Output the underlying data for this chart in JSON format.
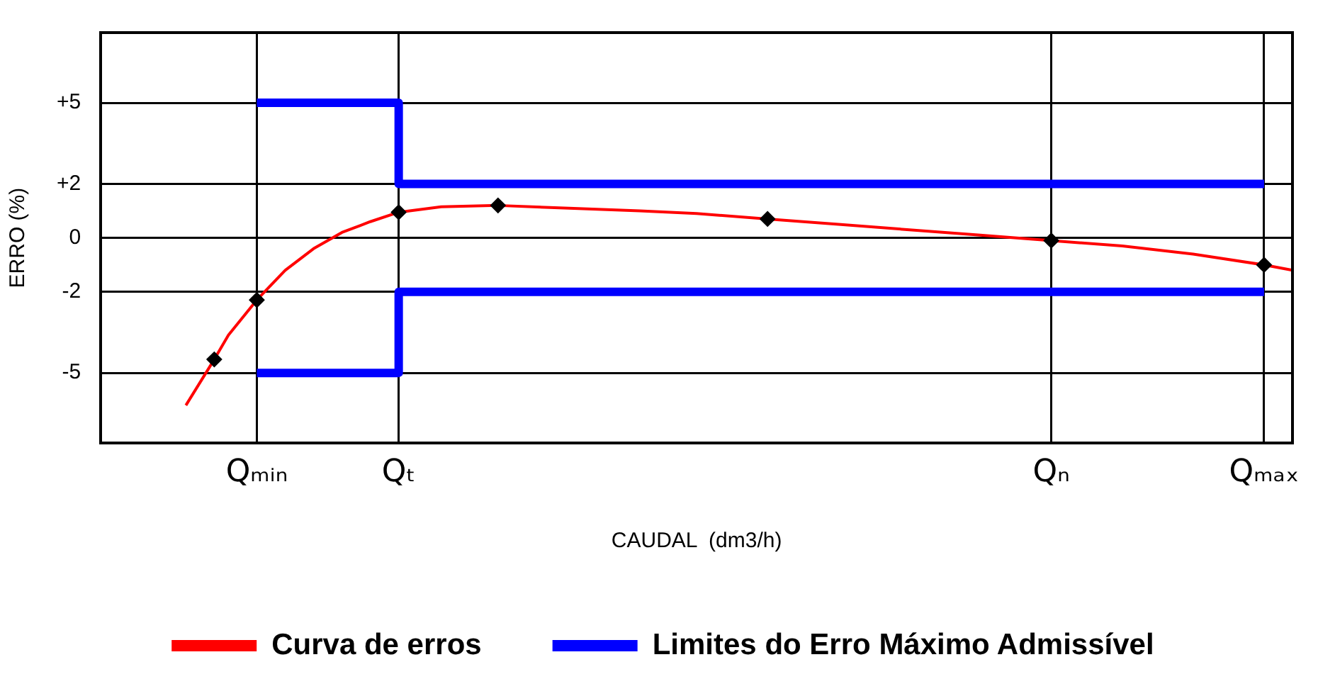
{
  "chart_data": {
    "type": "line",
    "xlabel": "CAUDAL  (dm3/h)",
    "ylabel": "ERRO (%)",
    "categories": [
      null,
      null,
      null,
      null,
      null,
      null,
      null,
      null,
      null,
      null,
      null,
      "Qₘᵢₙ",
      null,
      null,
      null,
      null,
      null,
      null,
      null,
      null,
      null,
      "Qₜ",
      null,
      null,
      null,
      null,
      null,
      null,
      null,
      null,
      null,
      null,
      null,
      null,
      null,
      null,
      null,
      null,
      null,
      null,
      null,
      null,
      null,
      null,
      null,
      null,
      null,
      null,
      null,
      null,
      null,
      null,
      null,
      null,
      null,
      null,
      null,
      null,
      null,
      null,
      null,
      null,
      null,
      null,
      null,
      null,
      null,
      "Qₙ",
      null,
      null,
      null,
      null,
      null,
      null,
      null,
      null,
      null,
      null,
      null,
      null,
      null,
      null,
      "Qₘₐₓ",
      null,
      null
    ],
    "ylim": [
      -7.6,
      7.6
    ],
    "yticks": [
      {
        "value": 5,
        "label": "+5"
      },
      {
        "value": 2,
        "label": "+2"
      },
      0,
      -2,
      -5
    ],
    "grid": true,
    "legend": "bottom",
    "line_style": "solid",
    "series": [
      {
        "name": "Curva de erros",
        "color": "#ff0000",
        "type": "line",
        "marker": "none",
        "values": [
          null,
          null,
          null,
          null,
          null,
          null,
          -6.2,
          null,
          -4.5,
          -3.6,
          null,
          -2.3,
          null,
          -1.2,
          null,
          -0.4,
          null,
          0.2,
          null,
          0.6,
          null,
          0.95,
          null,
          null,
          1.15,
          null,
          null,
          null,
          1.2,
          null,
          null,
          null,
          null,
          1.1,
          null,
          null,
          null,
          null,
          1.0,
          null,
          null,
          null,
          0.9,
          null,
          null,
          null,
          null,
          0.7,
          null,
          null,
          null,
          null,
          0.5,
          null,
          null,
          null,
          null,
          0.3,
          null,
          null,
          null,
          null,
          0.1,
          null,
          null,
          null,
          null,
          -0.1,
          null,
          null,
          null,
          null,
          -0.3,
          null,
          null,
          null,
          null,
          -0.6,
          null,
          null,
          null,
          null,
          -1.0,
          null,
          -1.2
        ]
      },
      {
        "name": "Limites do Erro Máximo Admissível",
        "color": "#0000ff",
        "type": "step",
        "marker": "none",
        "values": [
          null,
          null,
          null,
          null,
          null,
          null,
          null,
          null,
          null,
          null,
          null,
          5,
          null,
          null,
          null,
          null,
          null,
          null,
          null,
          null,
          null,
          2,
          null,
          null,
          null,
          null,
          null,
          null,
          null,
          null,
          null,
          null,
          null,
          null,
          null,
          null,
          null,
          null,
          null,
          null,
          null,
          null,
          null,
          null,
          null,
          null,
          null,
          null,
          null,
          null,
          null,
          null,
          null,
          null,
          null,
          null,
          null,
          null,
          null,
          null,
          null,
          null,
          null,
          null,
          null,
          null,
          null,
          null,
          null,
          null,
          null,
          null,
          null,
          null,
          null,
          null,
          null,
          null,
          null,
          null,
          null,
          null,
          2,
          null,
          null
        ]
      },
      {
        "color": "#0000ff",
        "type": "step",
        "marker": "none",
        "values": [
          null,
          null,
          null,
          null,
          null,
          null,
          null,
          null,
          null,
          null,
          null,
          -5,
          null,
          null,
          null,
          null,
          null,
          null,
          null,
          null,
          null,
          -2,
          null,
          null,
          null,
          null,
          null,
          null,
          null,
          null,
          null,
          null,
          null,
          null,
          null,
          null,
          null,
          null,
          null,
          null,
          null,
          null,
          null,
          null,
          null,
          null,
          null,
          null,
          null,
          null,
          null,
          null,
          null,
          null,
          null,
          null,
          null,
          null,
          null,
          null,
          null,
          null,
          null,
          null,
          null,
          null,
          null,
          null,
          null,
          null,
          null,
          null,
          null,
          null,
          null,
          null,
          null,
          null,
          null,
          null,
          null,
          null,
          -2,
          null,
          null
        ]
      },
      {
        "color": "#000000",
        "type": "scatter",
        "marker": "diamond",
        "values": [
          null,
          null,
          null,
          null,
          null,
          null,
          null,
          null,
          -4.5,
          null,
          null,
          -2.3,
          null,
          null,
          null,
          null,
          null,
          null,
          null,
          null,
          null,
          0.95,
          null,
          null,
          null,
          null,
          null,
          null,
          1.2,
          null,
          null,
          null,
          null,
          null,
          null,
          null,
          null,
          null,
          null,
          null,
          null,
          null,
          null,
          null,
          null,
          null,
          null,
          0.7,
          null,
          null,
          null,
          null,
          null,
          null,
          null,
          null,
          null,
          null,
          null,
          null,
          null,
          null,
          null,
          null,
          null,
          null,
          null,
          -0.1,
          null,
          null,
          null,
          null,
          null,
          null,
          null,
          null,
          null,
          null,
          null,
          null,
          null,
          null,
          -1.0,
          null,
          null
        ]
      }
    ]
  }
}
